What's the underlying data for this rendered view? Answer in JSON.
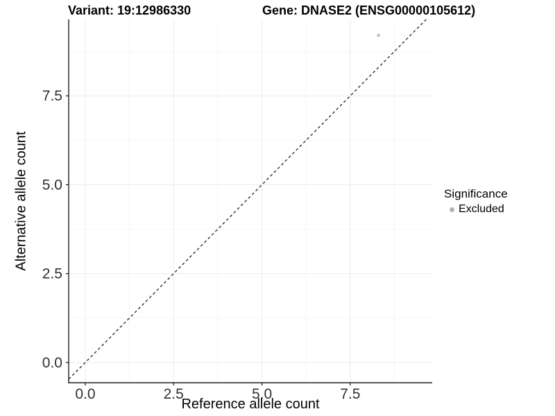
{
  "chart_data": {
    "type": "scatter",
    "titles": {
      "left": "Variant: 19:12986330",
      "right": "Gene: DNASE2 (ENSG00000105612)"
    },
    "xlabel": "Reference allele count",
    "ylabel": "Alternative allele count",
    "xlim": [
      -0.47,
      9.82
    ],
    "ylim": [
      -0.57,
      9.65
    ],
    "xticks": {
      "values": [
        0,
        2.5,
        5,
        7.5
      ],
      "labels": [
        "0.0",
        "2.5",
        "5.0",
        "7.5"
      ]
    },
    "yticks": {
      "values": [
        0,
        2.5,
        5,
        7.5
      ],
      "labels": [
        "0.0",
        "2.5",
        "5.0",
        "7.5"
      ]
    },
    "minor_ticks": [
      1.25,
      3.75,
      6.25,
      8.75
    ],
    "grid": {
      "major": true,
      "minor": true
    },
    "reference_line": {
      "type": "identity",
      "slope": 1,
      "intercept": 0,
      "style": "dashed"
    },
    "series": [
      {
        "name": "Excluded",
        "marker": "circle",
        "color": "#c2c2c2",
        "size": 2.4,
        "points": [
          {
            "x": 8.3,
            "y": 9.2
          }
        ]
      }
    ],
    "legend": {
      "title": "Significance",
      "position": "right",
      "items": [
        {
          "label": "Excluded",
          "swatch_color": "#b3b3b3"
        }
      ]
    },
    "colors": {
      "background": "#ffffff",
      "axis_line": "#1f1f1f",
      "tick_text": "#303030",
      "grid_major": "#ebebeb",
      "grid_minor": "#f5f5f5",
      "ref_line": "#222222",
      "title_text": "#000000"
    }
  }
}
